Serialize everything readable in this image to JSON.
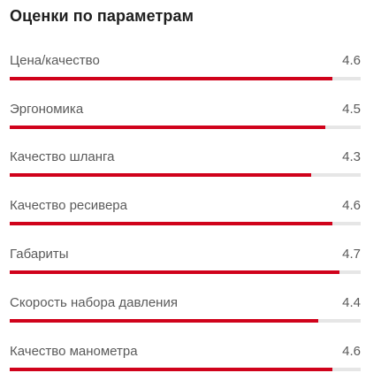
{
  "title": "Оценки по параметрам",
  "scale_max": 5,
  "colors": {
    "fill": "#d0021b",
    "track": "#e6e6e6"
  },
  "ratings": [
    {
      "label": "Цена/качество",
      "value": "4.6",
      "progress": 0.92
    },
    {
      "label": "Эргономика",
      "value": "4.5",
      "progress": 0.9
    },
    {
      "label": "Качество шланга",
      "value": "4.3",
      "progress": 0.86
    },
    {
      "label": "Качество ресивера",
      "value": "4.6",
      "progress": 0.92
    },
    {
      "label": "Габариты",
      "value": "4.7",
      "progress": 0.94
    },
    {
      "label": "Скорость набора давления",
      "value": "4.4",
      "progress": 0.88
    },
    {
      "label": "Качество манометра",
      "value": "4.6",
      "progress": 0.92
    }
  ]
}
